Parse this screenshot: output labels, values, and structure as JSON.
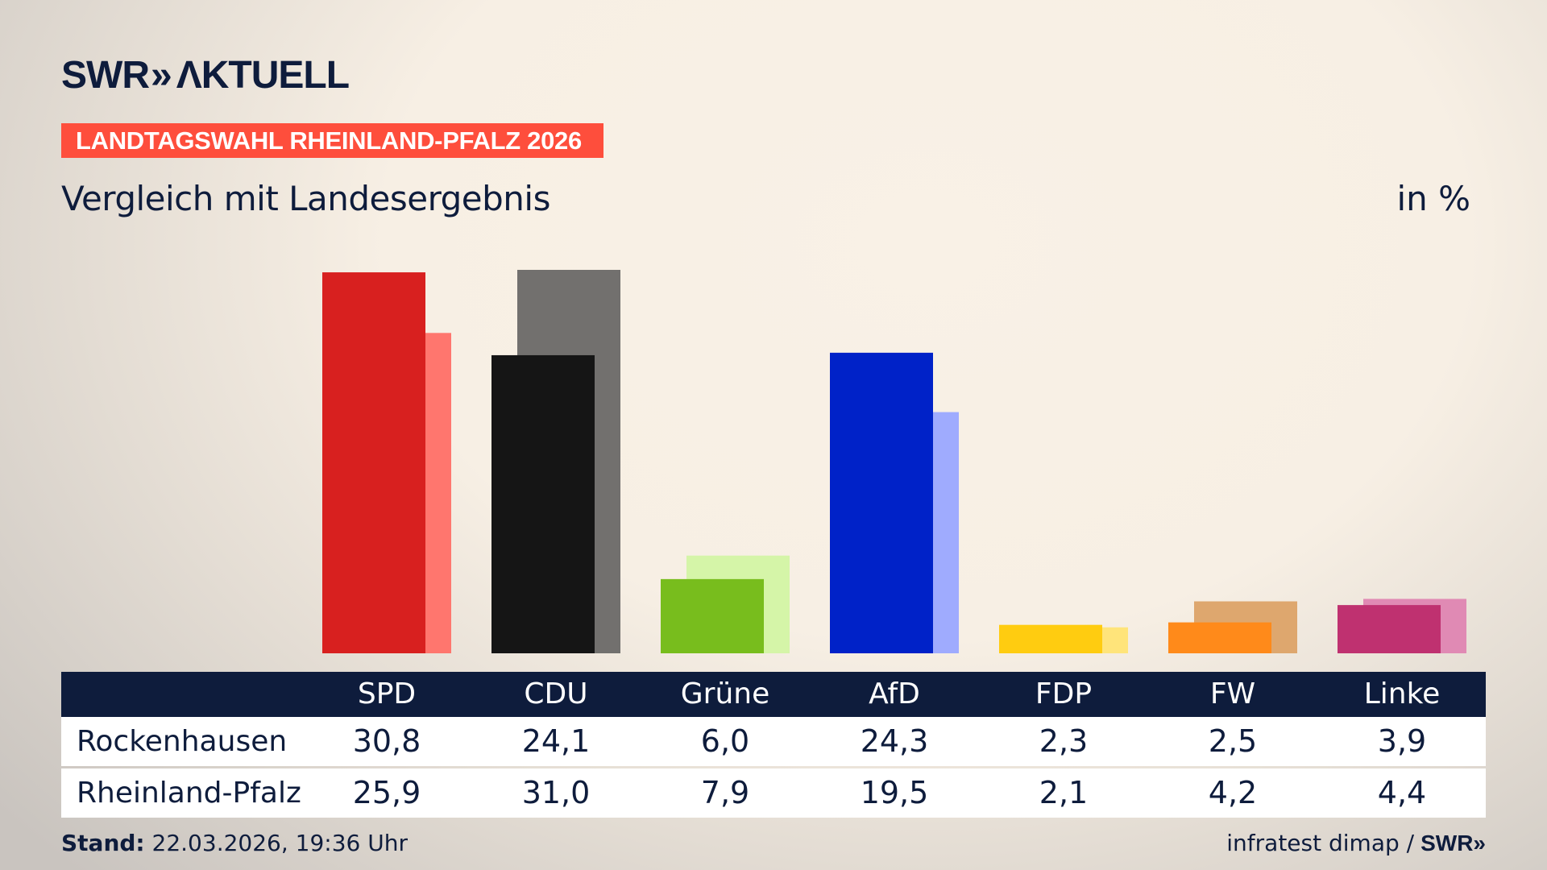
{
  "logo": {
    "text": "SWR» AKTUELL"
  },
  "banner": "LANDTAGSWAHL RHEINLAND-PFALZ 2026",
  "subtitle": "Vergleich mit Landesergebnis",
  "unit": "in %",
  "chart_data": {
    "type": "bar",
    "categories": [
      "SPD",
      "CDU",
      "Grüne",
      "AfD",
      "FDP",
      "FW",
      "Linke"
    ],
    "series": [
      {
        "name": "Rockenhausen",
        "values": [
          30.8,
          24.1,
          6.0,
          24.3,
          2.3,
          2.5,
          3.9
        ],
        "display": [
          "30,8",
          "24,1",
          "6,0",
          "24,3",
          "2,3",
          "2,5",
          "3,9"
        ],
        "colors": [
          "#d8201f",
          "#151515",
          "#78bd1d",
          "#0022c8",
          "#ffcc10",
          "#ff8a1a",
          "#bf3170"
        ]
      },
      {
        "name": "Rheinland-Pfalz",
        "values": [
          25.9,
          31.0,
          7.9,
          19.5,
          2.1,
          4.2,
          4.4
        ],
        "display": [
          "25,9",
          "31,0",
          "7,9",
          "19,5",
          "2,1",
          "4,2",
          "4,4"
        ],
        "colors": [
          "#ff766e",
          "#72706e",
          "#d5f5a8",
          "#9fabfe",
          "#ffe47a",
          "#dea76e",
          "#e08ab4"
        ]
      }
    ],
    "ylim": [
      0,
      31
    ],
    "grid": false
  },
  "footer": {
    "stand_label": "Stand:",
    "stand_value": "22.03.2026, 19:36 Uhr",
    "source": "infratest dimap /",
    "source_logo": "SWR»"
  }
}
